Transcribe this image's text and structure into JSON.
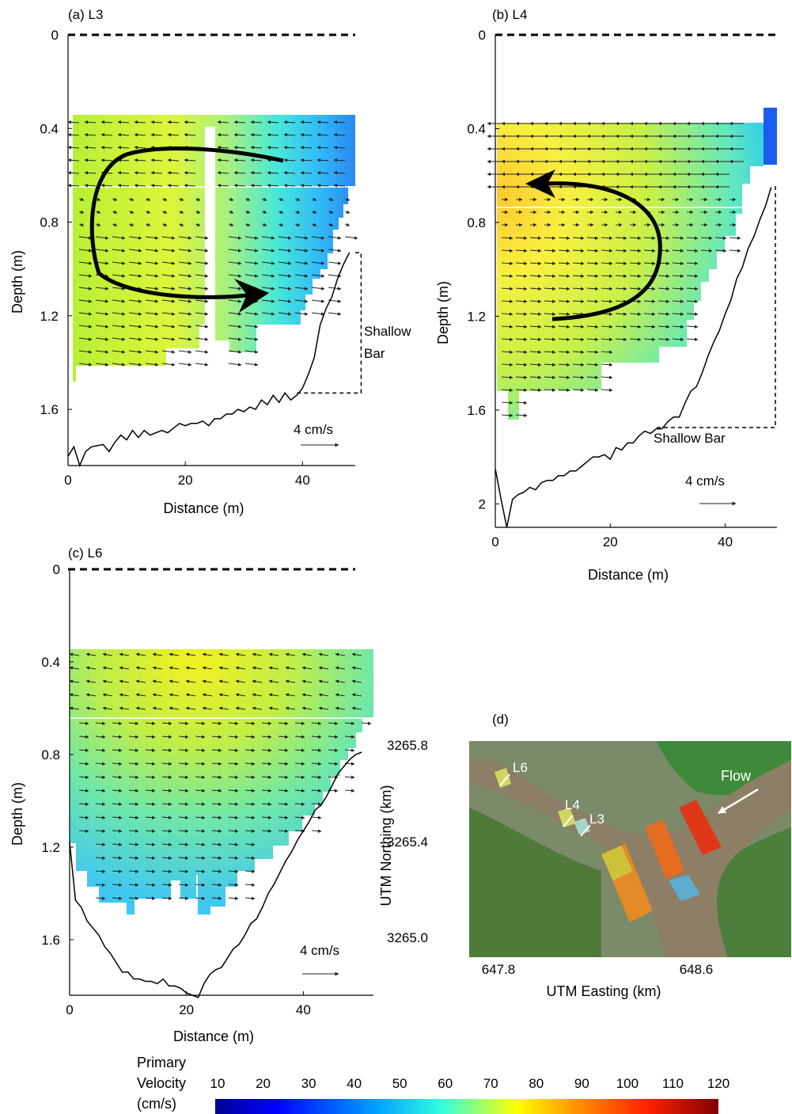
{
  "chart_data": [
    {
      "id": "a",
      "type": "heatmap",
      "title": "(a) L3",
      "xlabel": "Distance (m)",
      "ylabel": "Depth (m)",
      "xticks": [
        0,
        20,
        40
      ],
      "yticks": [
        0,
        0.4,
        0.8,
        1.2,
        1.6
      ],
      "ytick_labels": [
        "0",
        "0.4",
        "0.8",
        "1.2",
        "1.6"
      ],
      "xlim": [
        0,
        49
      ],
      "ylim": [
        0,
        1.84
      ],
      "scale_label": "4 cm/s",
      "bar_label": [
        "Shallow",
        "Bar"
      ],
      "circulation": "counter-clockwise (viewed): surface flow toward left bank, near-bed flow toward bar",
      "bed_profile": [
        [
          0,
          1.8
        ],
        [
          1,
          1.76
        ],
        [
          2,
          1.84
        ],
        [
          3,
          1.78
        ],
        [
          4,
          1.76
        ],
        [
          6,
          1.75
        ],
        [
          7,
          1.78
        ],
        [
          8,
          1.74
        ],
        [
          9,
          1.71
        ],
        [
          10,
          1.73
        ],
        [
          11,
          1.69
        ],
        [
          12,
          1.72
        ],
        [
          13,
          1.69
        ],
        [
          14,
          1.71
        ],
        [
          15,
          1.7
        ],
        [
          16,
          1.69
        ],
        [
          17,
          1.7
        ],
        [
          18,
          1.68
        ],
        [
          19,
          1.66
        ],
        [
          20,
          1.67
        ],
        [
          21,
          1.66
        ],
        [
          22,
          1.66
        ],
        [
          23,
          1.65
        ],
        [
          24,
          1.67
        ],
        [
          25,
          1.64
        ],
        [
          26,
          1.64
        ],
        [
          27,
          1.62
        ],
        [
          28,
          1.62
        ],
        [
          29,
          1.6
        ],
        [
          30,
          1.61
        ],
        [
          31,
          1.59
        ],
        [
          32,
          1.6
        ],
        [
          33,
          1.56
        ],
        [
          34,
          1.58
        ],
        [
          35,
          1.54
        ],
        [
          36,
          1.57
        ],
        [
          37,
          1.53
        ],
        [
          38,
          1.56
        ],
        [
          39,
          1.54
        ],
        [
          40,
          1.51
        ],
        [
          41,
          1.45
        ],
        [
          42,
          1.38
        ],
        [
          43,
          1.24
        ],
        [
          44,
          1.17
        ],
        [
          45,
          1.12
        ],
        [
          46,
          1.04
        ],
        [
          47,
          0.98
        ],
        [
          48,
          0.93
        ]
      ],
      "bar_box": {
        "x": [
          39,
          50
        ],
        "y": [
          0.93,
          1.53
        ]
      }
    },
    {
      "id": "b",
      "type": "heatmap",
      "title": "(b) L4",
      "xlabel": "Distance (m)",
      "ylabel": "Depth (m)",
      "xticks": [
        0,
        20,
        40
      ],
      "yticks": [
        0,
        0.4,
        0.8,
        1.2,
        1.6,
        2.0
      ],
      "ytick_labels": [
        "0",
        "0.4",
        "0.8",
        "1.2",
        "1.6",
        "2"
      ],
      "xlim": [
        0,
        49
      ],
      "ylim": [
        0,
        2.1
      ],
      "scale_label": "4 cm/s",
      "bar_label": [
        "Shallow Bar"
      ],
      "circulation": "clockwise (viewed): surface flow toward left bank arrow head at upper-left",
      "bed_profile": [
        [
          0,
          1.85
        ],
        [
          1,
          1.98
        ],
        [
          2,
          2.1
        ],
        [
          3,
          1.98
        ],
        [
          4,
          1.96
        ],
        [
          5,
          1.95
        ],
        [
          6,
          1.93
        ],
        [
          7,
          1.94
        ],
        [
          8,
          1.91
        ],
        [
          9,
          1.9
        ],
        [
          10,
          1.9
        ],
        [
          11,
          1.88
        ],
        [
          12,
          1.88
        ],
        [
          13,
          1.86
        ],
        [
          14,
          1.86
        ],
        [
          15,
          1.84
        ],
        [
          16,
          1.82
        ],
        [
          17,
          1.8
        ],
        [
          18,
          1.8
        ],
        [
          19,
          1.79
        ],
        [
          20,
          1.81
        ],
        [
          21,
          1.76
        ],
        [
          22,
          1.77
        ],
        [
          23,
          1.74
        ],
        [
          24,
          1.74
        ],
        [
          25,
          1.71
        ],
        [
          26,
          1.69
        ],
        [
          27,
          1.7
        ],
        [
          28,
          1.68
        ],
        [
          29,
          1.68
        ],
        [
          30,
          1.65
        ],
        [
          31,
          1.63
        ],
        [
          32,
          1.63
        ],
        [
          33,
          1.57
        ],
        [
          34,
          1.52
        ],
        [
          35,
          1.5
        ],
        [
          36,
          1.44
        ],
        [
          37,
          1.37
        ],
        [
          38,
          1.31
        ],
        [
          39,
          1.26
        ],
        [
          40,
          1.19
        ],
        [
          41,
          1.13
        ],
        [
          42,
          1.04
        ],
        [
          43,
          0.99
        ],
        [
          44,
          0.91
        ],
        [
          45,
          0.86
        ],
        [
          46,
          0.79
        ],
        [
          47,
          0.73
        ],
        [
          48,
          0.65
        ]
      ],
      "bar_box": {
        "x": [
          48,
          48
        ],
        "y": [
          0.65,
          1.68
        ]
      }
    },
    {
      "id": "c",
      "type": "heatmap",
      "title": "(c) L6",
      "xlabel": "Distance (m)",
      "ylabel": "Depth (m)",
      "xticks": [
        0,
        20,
        40
      ],
      "yticks": [
        0,
        0.4,
        0.8,
        1.2,
        1.6
      ],
      "ytick_labels": [
        "0",
        "0.4",
        "0.8",
        "1.2",
        "1.6"
      ],
      "xlim": [
        0,
        52
      ],
      "ylim": [
        0,
        1.84
      ],
      "scale_label": "4 cm/s",
      "bed_profile": [
        [
          0,
          1.18
        ],
        [
          1,
          1.43
        ],
        [
          2,
          1.46
        ],
        [
          3,
          1.52
        ],
        [
          4,
          1.55
        ],
        [
          5,
          1.58
        ],
        [
          6,
          1.63
        ],
        [
          7,
          1.66
        ],
        [
          8,
          1.7
        ],
        [
          9,
          1.74
        ],
        [
          10,
          1.74
        ],
        [
          11,
          1.77
        ],
        [
          12,
          1.77
        ],
        [
          13,
          1.78
        ],
        [
          14,
          1.78
        ],
        [
          15,
          1.79
        ],
        [
          16,
          1.77
        ],
        [
          17,
          1.8
        ],
        [
          18,
          1.8
        ],
        [
          19,
          1.81
        ],
        [
          20,
          1.83
        ],
        [
          21,
          1.84
        ],
        [
          22,
          1.85
        ],
        [
          23,
          1.79
        ],
        [
          24,
          1.75
        ],
        [
          25,
          1.73
        ],
        [
          26,
          1.72
        ],
        [
          27,
          1.68
        ],
        [
          28,
          1.64
        ],
        [
          29,
          1.62
        ],
        [
          30,
          1.58
        ],
        [
          31,
          1.53
        ],
        [
          32,
          1.51
        ],
        [
          33,
          1.46
        ],
        [
          34,
          1.4
        ],
        [
          35,
          1.36
        ],
        [
          36,
          1.31
        ],
        [
          37,
          1.26
        ],
        [
          38,
          1.22
        ],
        [
          39,
          1.17
        ],
        [
          40,
          1.13
        ],
        [
          41,
          1.09
        ],
        [
          42,
          1.04
        ],
        [
          43,
          1.02
        ],
        [
          44,
          0.98
        ],
        [
          45,
          0.93
        ],
        [
          46,
          0.88
        ],
        [
          47,
          0.85
        ],
        [
          48,
          0.82
        ],
        [
          49,
          0.8
        ],
        [
          50,
          0.79
        ]
      ]
    }
  ],
  "map": {
    "title": "(d)",
    "xlabel": "UTM Easting (km)",
    "ylabel": "UTM Northing (km)",
    "xticks": [
      "647.8",
      "648.6"
    ],
    "yticks": [
      "3265.8",
      "3265.4",
      "3265.0"
    ],
    "labels": {
      "l6": "L6",
      "l4": "L4",
      "l3": "L3",
      "flow": "Flow"
    }
  },
  "colorbar": {
    "title": [
      "Primary",
      "Velocity",
      "(cm/s)"
    ],
    "ticks": [
      "10",
      "20",
      "30",
      "40",
      "50",
      "60",
      "70",
      "80",
      "90",
      "100",
      "110",
      "120"
    ],
    "colors": [
      "#00008f",
      "#0000ff",
      "#00a0ff",
      "#33ffdd",
      "#ffff00",
      "#ff9000",
      "#ff2000",
      "#800000"
    ]
  }
}
